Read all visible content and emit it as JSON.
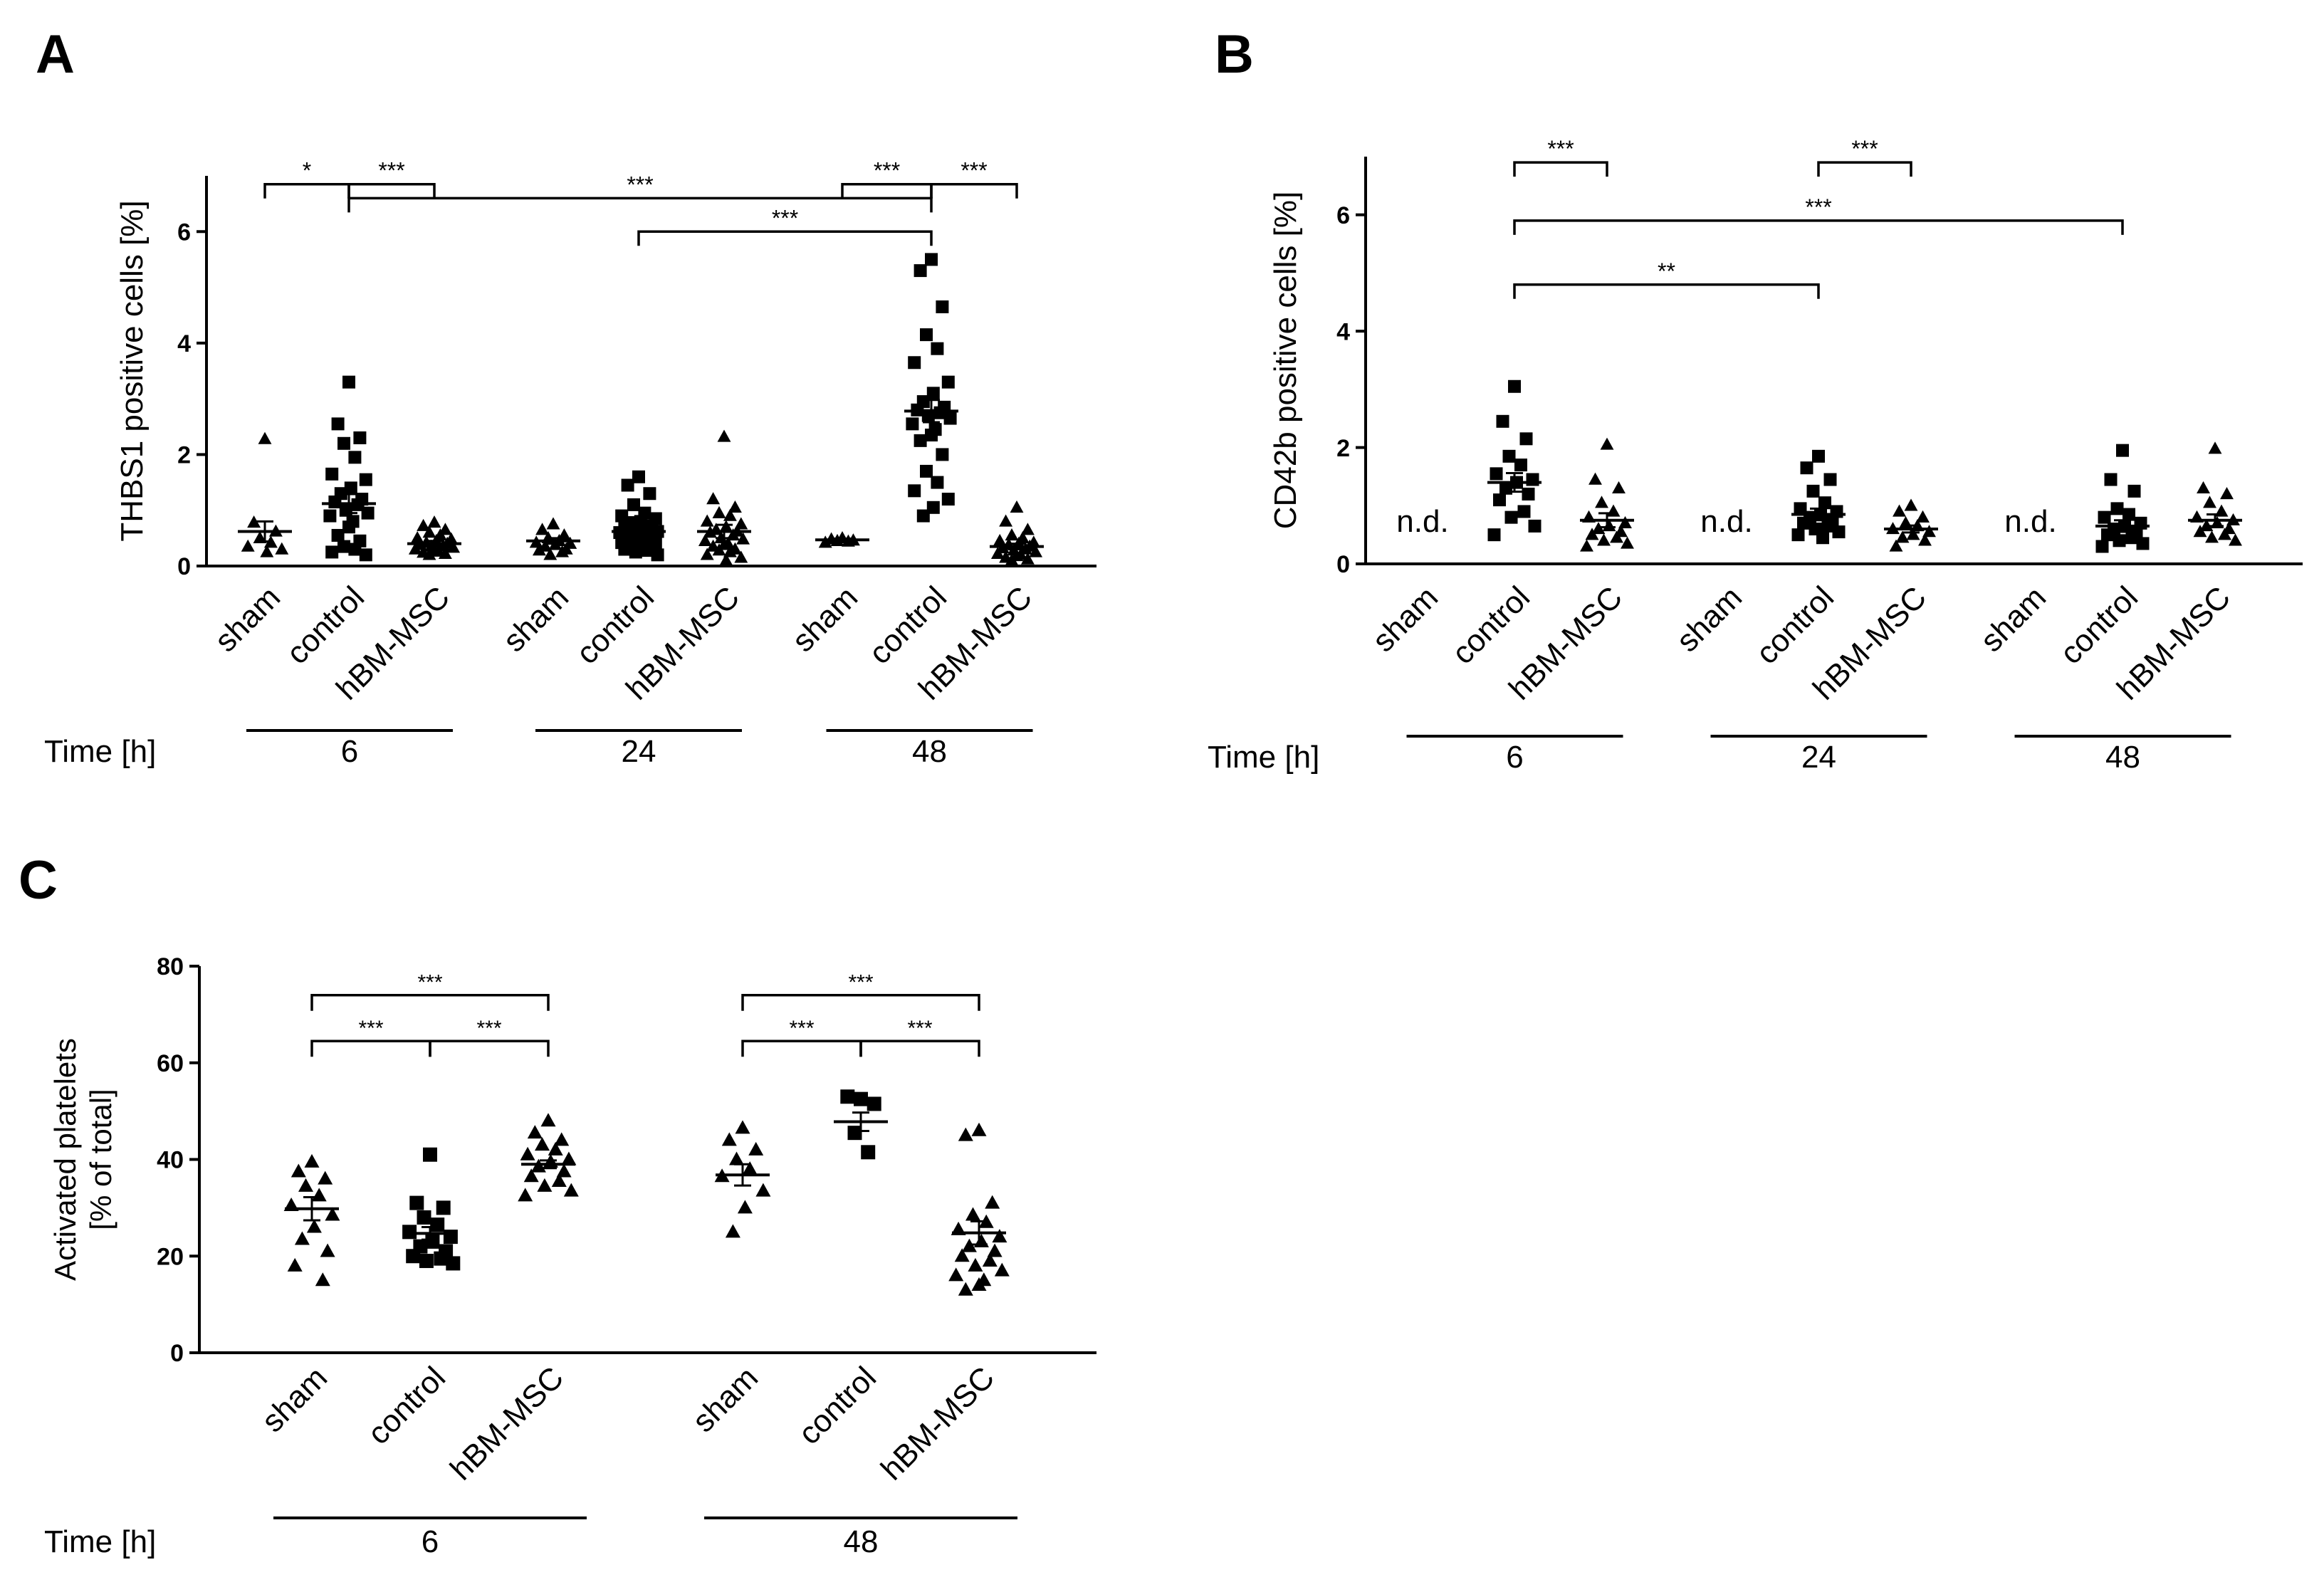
{
  "colors": {
    "ink": "#000000",
    "background": "#ffffff"
  },
  "chart_data": [
    {
      "panel": "A",
      "type": "scatter",
      "ylabel": "THBS1 positive cells [%]",
      "ylim": [
        0,
        7
      ],
      "yticks": [
        "0",
        "2",
        "4",
        "6"
      ],
      "time_label": "Time  [h]",
      "groups": [
        "sham",
        "control",
        "hBM-MSC"
      ],
      "timepoints": [
        {
          "label": "6",
          "series": [
            {
              "group": "sham",
              "marker": "triangle",
              "mean": 0.62,
              "sem": 0.18,
              "values": [
                2.28,
                0.78,
                0.62,
                0.5,
                0.42,
                0.35,
                0.3,
                0.25
              ]
            },
            {
              "group": "control",
              "marker": "square",
              "mean": 1.12,
              "sem": 0.17,
              "values": [
                3.3,
                2.55,
                2.3,
                2.2,
                1.95,
                1.65,
                1.55,
                1.4,
                1.3,
                1.2,
                1.15,
                1.1,
                1.0,
                0.95,
                0.9,
                0.8,
                0.7,
                0.55,
                0.45,
                0.35,
                0.3,
                0.25,
                0.2
              ]
            },
            {
              "group": "hBM-MSC",
              "marker": "triangle",
              "mean": 0.4,
              "sem": 0.05,
              "values": [
                0.78,
                0.72,
                0.65,
                0.6,
                0.55,
                0.5,
                0.48,
                0.45,
                0.42,
                0.4,
                0.38,
                0.36,
                0.35,
                0.33,
                0.3,
                0.28,
                0.26,
                0.24,
                0.22,
                0.2
              ]
            }
          ]
        },
        {
          "label": "24",
          "series": [
            {
              "group": "sham",
              "marker": "triangle",
              "mean": 0.45,
              "sem": 0.05,
              "values": [
                0.75,
                0.65,
                0.55,
                0.5,
                0.45,
                0.42,
                0.4,
                0.38,
                0.35,
                0.3,
                0.28,
                0.25,
                0.2
              ]
            },
            {
              "group": "control",
              "marker": "square",
              "mean": 0.62,
              "sem": 0.07,
              "values": [
                1.6,
                1.45,
                1.3,
                1.1,
                0.95,
                0.9,
                0.85,
                0.8,
                0.78,
                0.72,
                0.7,
                0.68,
                0.65,
                0.62,
                0.6,
                0.58,
                0.55,
                0.52,
                0.5,
                0.48,
                0.45,
                0.42,
                0.4,
                0.38,
                0.35,
                0.32,
                0.3,
                0.28,
                0.25,
                0.2
              ]
            },
            {
              "group": "hBM-MSC",
              "marker": "triangle",
              "mean": 0.62,
              "sem": 0.12,
              "values": [
                2.32,
                1.2,
                1.05,
                0.95,
                0.9,
                0.8,
                0.75,
                0.7,
                0.65,
                0.62,
                0.6,
                0.55,
                0.5,
                0.48,
                0.45,
                0.4,
                0.38,
                0.35,
                0.3,
                0.28,
                0.25,
                0.2,
                0.15,
                0.1
              ]
            }
          ]
        },
        {
          "label": "48",
          "series": [
            {
              "group": "sham",
              "marker": "triangle",
              "mean": 0.47,
              "sem": 0.02,
              "values": [
                0.5,
                0.48,
                0.46,
                0.45,
                0.44,
                0.42
              ]
            },
            {
              "group": "control",
              "marker": "square",
              "mean": 2.78,
              "sem": 0.2,
              "values": [
                5.5,
                5.3,
                4.65,
                4.15,
                3.9,
                3.65,
                3.3,
                3.1,
                2.95,
                2.85,
                2.8,
                2.75,
                2.7,
                2.65,
                2.55,
                2.45,
                2.35,
                2.25,
                2.0,
                1.7,
                1.5,
                1.35,
                1.2,
                1.05,
                0.9
              ]
            },
            {
              "group": "hBM-MSC",
              "marker": "triangle",
              "mean": 0.35,
              "sem": 0.05,
              "values": [
                1.05,
                0.8,
                0.65,
                0.55,
                0.5,
                0.45,
                0.42,
                0.4,
                0.38,
                0.35,
                0.32,
                0.3,
                0.28,
                0.25,
                0.22,
                0.2,
                0.18,
                0.15,
                0.12,
                0.1
              ]
            }
          ]
        }
      ],
      "significance": [
        {
          "from": [
            0,
            0
          ],
          "to": [
            0,
            1
          ],
          "label": "*",
          "level": 6.85
        },
        {
          "from": [
            0,
            1
          ],
          "to": [
            0,
            2
          ],
          "label": "***",
          "level": 6.85
        },
        {
          "from": [
            2,
            0
          ],
          "to": [
            2,
            1
          ],
          "label": "***",
          "level": 6.85
        },
        {
          "from": [
            2,
            1
          ],
          "to": [
            2,
            2
          ],
          "label": "***",
          "level": 6.85
        },
        {
          "from": [
            0,
            1
          ],
          "to": [
            2,
            1
          ],
          "label": "***",
          "level": 6.6
        },
        {
          "from": [
            1,
            1
          ],
          "to": [
            2,
            1
          ],
          "label": "***",
          "level": 6.0
        }
      ]
    },
    {
      "panel": "B",
      "type": "scatter",
      "ylabel": "CD42b positive cells [%]",
      "ylim": [
        0,
        7
      ],
      "yticks": [
        "0",
        "2",
        "4",
        "6"
      ],
      "time_label": "Time  [h]",
      "groups": [
        "sham",
        "control",
        "hBM-MSC"
      ],
      "not_detected_label": "n.d.",
      "timepoints": [
        {
          "label": "6",
          "series": [
            {
              "group": "sham",
              "marker": "none",
              "not_detected": true,
              "values": []
            },
            {
              "group": "control",
              "marker": "square",
              "mean": 1.4,
              "sem": 0.16,
              "values": [
                3.05,
                2.45,
                2.15,
                1.85,
                1.7,
                1.55,
                1.45,
                1.4,
                1.3,
                1.2,
                1.1,
                0.9,
                0.8,
                0.65,
                0.5
              ]
            },
            {
              "group": "hBM-MSC",
              "marker": "triangle",
              "mean": 0.75,
              "sem": 0.12,
              "values": [
                2.05,
                1.45,
                1.3,
                1.05,
                0.9,
                0.8,
                0.7,
                0.65,
                0.6,
                0.55,
                0.5,
                0.45,
                0.4,
                0.35,
                0.3
              ]
            }
          ]
        },
        {
          "label": "24",
          "series": [
            {
              "group": "sham",
              "marker": "none",
              "not_detected": true,
              "values": []
            },
            {
              "group": "control",
              "marker": "square",
              "mean": 0.85,
              "sem": 0.1,
              "values": [
                1.85,
                1.65,
                1.45,
                1.25,
                1.05,
                0.95,
                0.9,
                0.85,
                0.8,
                0.75,
                0.7,
                0.65,
                0.6,
                0.55,
                0.5,
                0.45
              ]
            },
            {
              "group": "hBM-MSC",
              "marker": "triangle",
              "mean": 0.6,
              "sem": 0.06,
              "values": [
                1.0,
                0.9,
                0.8,
                0.7,
                0.65,
                0.6,
                0.55,
                0.5,
                0.45,
                0.4,
                0.3
              ]
            }
          ]
        },
        {
          "label": "48",
          "series": [
            {
              "group": "sham",
              "marker": "none",
              "not_detected": true,
              "values": []
            },
            {
              "group": "control",
              "marker": "square",
              "mean": 0.65,
              "sem": 0.1,
              "values": [
                1.95,
                1.45,
                1.25,
                0.95,
                0.85,
                0.8,
                0.7,
                0.65,
                0.6,
                0.55,
                0.5,
                0.45,
                0.4,
                0.35,
                0.3
              ]
            },
            {
              "group": "hBM-MSC",
              "marker": "triangle",
              "mean": 0.75,
              "sem": 0.1,
              "values": [
                1.98,
                1.3,
                1.2,
                1.05,
                0.9,
                0.8,
                0.75,
                0.7,
                0.65,
                0.6,
                0.55,
                0.5,
                0.45,
                0.4
              ]
            }
          ]
        }
      ],
      "significance": [
        {
          "from": [
            0,
            1
          ],
          "to": [
            0,
            2
          ],
          "label": "***",
          "level": 6.9
        },
        {
          "from": [
            1,
            1
          ],
          "to": [
            1,
            2
          ],
          "label": "***",
          "level": 6.9
        },
        {
          "from": [
            0,
            1
          ],
          "to": [
            2,
            1
          ],
          "label": "***",
          "level": 5.9
        },
        {
          "from": [
            0,
            1
          ],
          "to": [
            1,
            1
          ],
          "label": "**",
          "level": 4.8
        }
      ]
    },
    {
      "panel": "C",
      "type": "scatter",
      "ylabel_lines": [
        "Activated platelets",
        "[% of total]"
      ],
      "ylim": [
        0,
        80
      ],
      "yticks": [
        "0",
        "20",
        "40",
        "60",
        "80"
      ],
      "time_label": "Time  [h]",
      "groups": [
        "sham",
        "control",
        "hBM-MSC"
      ],
      "timepoints": [
        {
          "label": "6",
          "series": [
            {
              "group": "sham",
              "marker": "triangle",
              "mean": 29.8,
              "sem": 2.4,
              "values": [
                39.5,
                37.5,
                36,
                34.5,
                32.5,
                30.5,
                28.5,
                26,
                23.5,
                21,
                18,
                15
              ]
            },
            {
              "group": "control",
              "marker": "square",
              "mean": 24.7,
              "sem": 1.3,
              "values": [
                41,
                31,
                30,
                28,
                26.5,
                25,
                24,
                23,
                22,
                21,
                20,
                19.5,
                19,
                18.5
              ]
            },
            {
              "group": "hBM-MSC",
              "marker": "triangle",
              "mean": 39,
              "sem": 0.8,
              "values": [
                48,
                45.5,
                44,
                43,
                42,
                41,
                40,
                39.5,
                38.5,
                37.5,
                36.5,
                35.5,
                34.5,
                33.5,
                32.5
              ]
            }
          ]
        },
        {
          "label": "48",
          "series": [
            {
              "group": "sham",
              "marker": "triangle",
              "mean": 36.8,
              "sem": 2.2,
              "values": [
                46.5,
                44,
                42,
                40,
                38,
                36.5,
                33.5,
                30,
                25
              ]
            },
            {
              "group": "control",
              "marker": "square",
              "mean": 47.8,
              "sem": 1.9,
              "values": [
                52.5,
                53,
                51.5,
                45.5,
                41.5
              ]
            },
            {
              "group": "hBM-MSC",
              "marker": "triangle",
              "mean": 24.8,
              "sem": 2.4,
              "values": [
                46,
                45,
                31,
                28.5,
                27,
                25.5,
                24,
                23,
                22,
                21,
                20,
                19,
                18,
                17,
                16,
                15,
                14,
                13
              ]
            }
          ]
        }
      ],
      "significance": [
        {
          "from": [
            0,
            0
          ],
          "to": [
            0,
            2
          ],
          "label": "***",
          "level": 74
        },
        {
          "from": [
            0,
            0
          ],
          "to": [
            0,
            1
          ],
          "label": "***",
          "level": 64.5
        },
        {
          "from": [
            0,
            1
          ],
          "to": [
            0,
            2
          ],
          "label": "***",
          "level": 64.5
        },
        {
          "from": [
            1,
            0
          ],
          "to": [
            1,
            2
          ],
          "label": "***",
          "level": 74
        },
        {
          "from": [
            1,
            0
          ],
          "to": [
            1,
            1
          ],
          "label": "***",
          "level": 64.5
        },
        {
          "from": [
            1,
            1
          ],
          "to": [
            1,
            2
          ],
          "label": "***",
          "level": 64.5
        }
      ]
    }
  ]
}
